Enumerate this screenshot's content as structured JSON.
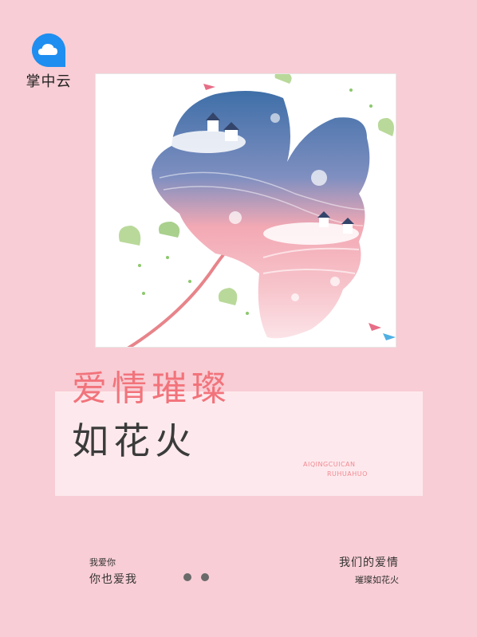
{
  "brand": {
    "name": "掌中云",
    "icon": "cloud-icon",
    "color": "#1e8ef0"
  },
  "cover": {
    "title_line1": "爱情璀璨",
    "title_line2": "如花火",
    "pinyin_line1": "AIQINGCUICAN",
    "pinyin_line2": "RUHUAHUO",
    "title_color": "#f2737b",
    "background": "#f8cdd5"
  },
  "footer": {
    "left_line1": "我爱你",
    "left_line2": "你也爱我",
    "right_line1": "我们的爱情",
    "right_line2": "璀璨如花火",
    "dots_icon": "pagination-dots-icon"
  },
  "artwork": {
    "icon": "ginkgo-leaf-illustration"
  }
}
